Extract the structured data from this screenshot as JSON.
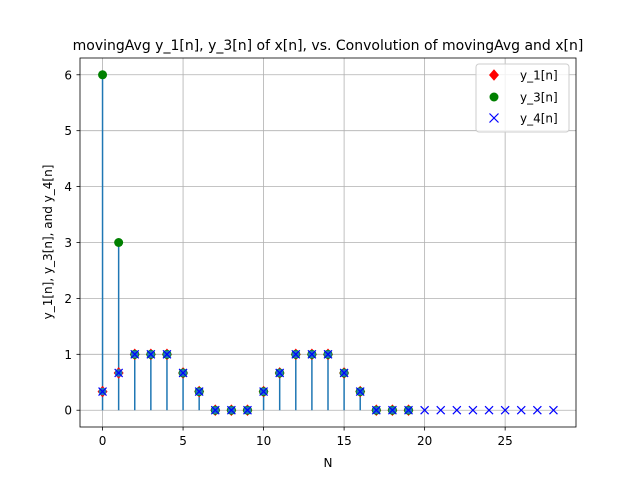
{
  "chart_data": {
    "type": "stem",
    "title": "movingAvg y_1[n], y_3[n] of x[n], vs. Convolution of movingAvg and x[n]",
    "xlabel": "N",
    "ylabel": "y_1[n], y_3[n], and y_4[n]",
    "xlim": [
      -1.4,
      29.4
    ],
    "ylim": [
      -0.3,
      6.3
    ],
    "xticks": [
      0,
      5,
      10,
      15,
      20,
      25
    ],
    "yticks": [
      0,
      1,
      2,
      3,
      4,
      5,
      6
    ],
    "grid": true,
    "legend_position": "top-right",
    "stem_color": "#1f77b4",
    "stem_values": [
      6,
      3,
      1,
      1,
      1,
      0.6667,
      0.3333,
      0,
      0,
      0,
      0.3333,
      0.6667,
      1,
      1,
      1,
      0.6667,
      0.3333,
      0,
      0,
      0
    ],
    "series": [
      {
        "name": "y_1[n]",
        "marker": "diamond",
        "color": "#ff0000",
        "x": [
          0,
          1,
          2,
          3,
          4,
          5,
          6,
          7,
          8,
          9,
          10,
          11,
          12,
          13,
          14,
          15,
          16,
          17,
          18,
          19
        ],
        "values": [
          0.3333,
          0.6667,
          1,
          1,
          1,
          0.6667,
          0.3333,
          0,
          0,
          0,
          0.3333,
          0.6667,
          1,
          1,
          1,
          0.6667,
          0.3333,
          0,
          0,
          0
        ]
      },
      {
        "name": "y_3[n]",
        "marker": "circle",
        "color": "#008000",
        "x": [
          0,
          1,
          2,
          3,
          4,
          5,
          6,
          7,
          8,
          9,
          10,
          11,
          12,
          13,
          14,
          15,
          16,
          17,
          18,
          19
        ],
        "values": [
          6,
          3,
          1,
          1,
          1,
          0.6667,
          0.3333,
          0,
          0,
          0,
          0.3333,
          0.6667,
          1,
          1,
          1,
          0.6667,
          0.3333,
          0,
          0,
          0
        ]
      },
      {
        "name": "y_4[n]",
        "marker": "x",
        "color": "#0000ff",
        "x": [
          0,
          1,
          2,
          3,
          4,
          5,
          6,
          7,
          8,
          9,
          10,
          11,
          12,
          13,
          14,
          15,
          16,
          17,
          18,
          19,
          20,
          21,
          22,
          23,
          24,
          25,
          26,
          27,
          28
        ],
        "values": [
          0.3333,
          0.6667,
          1,
          1,
          1,
          0.6667,
          0.3333,
          0,
          0,
          0,
          0.3333,
          0.6667,
          1,
          1,
          1,
          0.6667,
          0.3333,
          0,
          0,
          0,
          0,
          0,
          0,
          0,
          0,
          0,
          0,
          0,
          0
        ]
      }
    ],
    "stem_marker_overlay": {
      "marker": "circle",
      "color": "#1f77b4",
      "x": [
        0,
        1,
        2,
        3,
        4,
        5,
        6,
        7,
        8,
        9,
        10,
        11,
        12,
        13,
        14,
        15,
        16,
        17,
        18,
        19
      ],
      "values": [
        0.3333,
        0.6667,
        1,
        1,
        1,
        0.6667,
        0.3333,
        0,
        0,
        0,
        0.3333,
        0.6667,
        1,
        1,
        1,
        0.6667,
        0.3333,
        0,
        0,
        0
      ]
    }
  }
}
